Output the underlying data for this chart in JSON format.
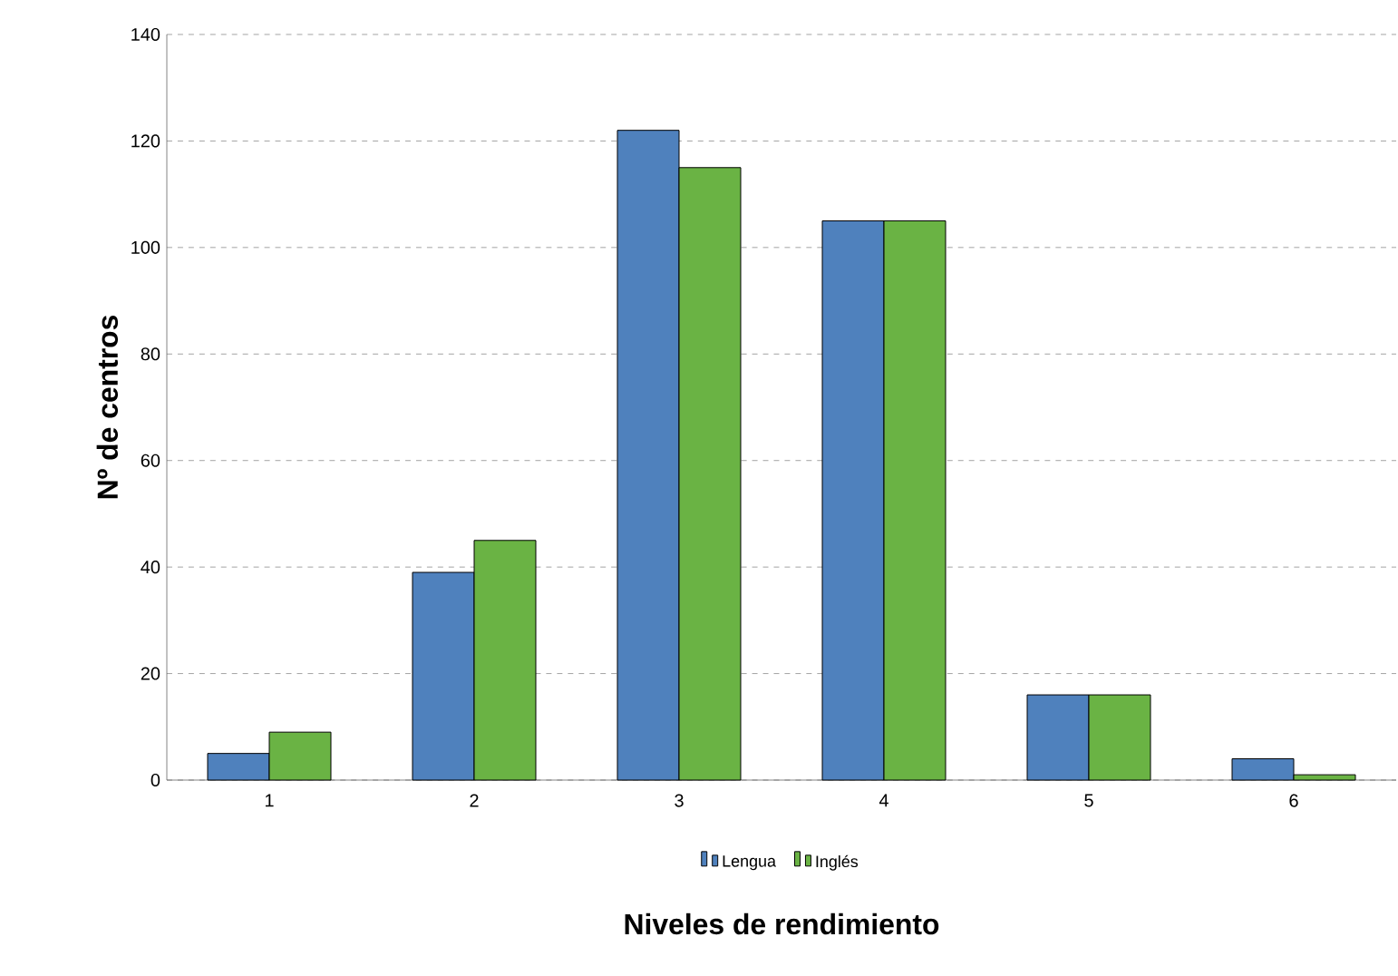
{
  "chart_data": {
    "type": "bar",
    "xlabel": "Niveles de rendimiento",
    "ylabel": "Nº de centros",
    "categories": [
      "1",
      "2",
      "3",
      "4",
      "5",
      "6"
    ],
    "series": [
      {
        "name": "Lengua",
        "color": "#4f81bd",
        "values": [
          5,
          39,
          122,
          105,
          16,
          4
        ]
      },
      {
        "name": "Inglés",
        "color": "#6ab344",
        "values": [
          9,
          45,
          115,
          105,
          16,
          1
        ]
      }
    ],
    "ylim": [
      0,
      140
    ],
    "yticks": [
      0,
      20,
      40,
      60,
      80,
      100,
      120,
      140
    ],
    "grid": "y",
    "legend": "bottom"
  }
}
